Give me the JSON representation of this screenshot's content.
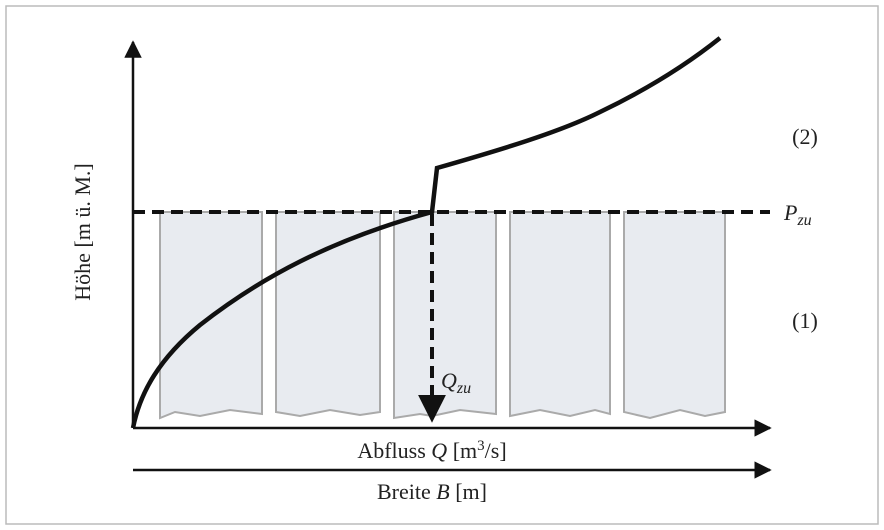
{
  "y_axis_label": "Höhe [m ü. M.]",
  "x_axis_label": {
    "text": "Abfluss ",
    "symbol": "Q",
    "unit_open": " [m",
    "unit_power": "3",
    "unit_close": "/s]"
  },
  "width_axis_label": {
    "text": "Breite ",
    "symbol": "B",
    "unit": " [m]"
  },
  "region_upper": "(2)",
  "region_lower": "(1)",
  "level_label": {
    "symbol": "P",
    "subscript": "zu"
  },
  "discharge_label": {
    "symbol": "Q",
    "subscript": "zu"
  }
}
